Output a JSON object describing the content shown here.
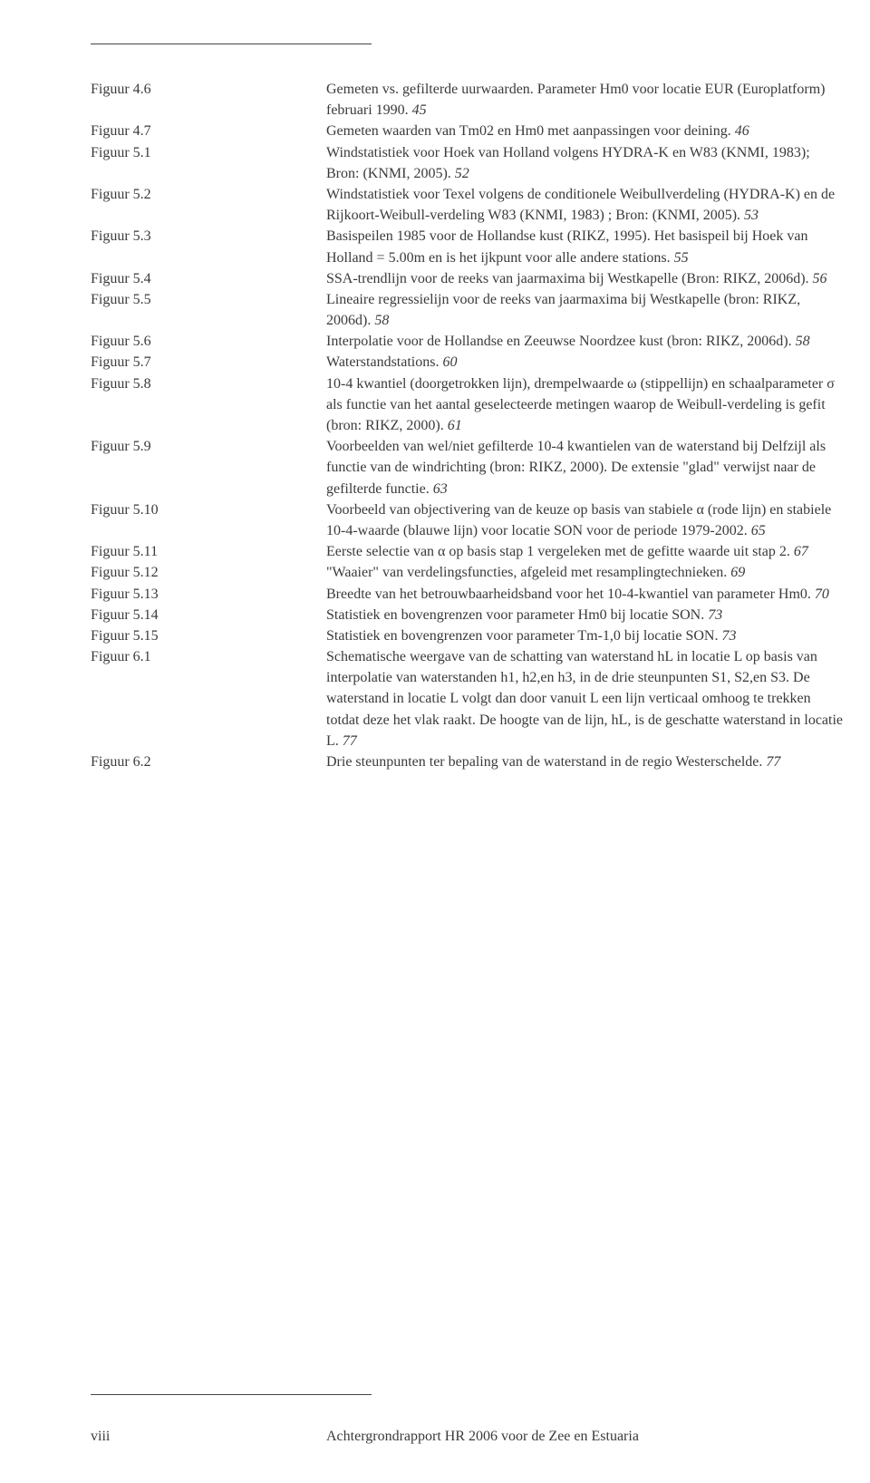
{
  "entries": [
    {
      "label": "Figuur 4.6",
      "desc": "Gemeten vs. gefilterde uurwaarden. Parameter Hm0 voor locatie EUR (Europlatform) februari 1990.",
      "page": "45"
    },
    {
      "label": "Figuur 4.7",
      "desc": "Gemeten waarden van Tm02 en Hm0 met aanpassingen voor deining.",
      "page": "46"
    },
    {
      "label": "Figuur 5.1",
      "desc": "Windstatistiek voor Hoek van Holland volgens HYDRA-K en W83 (KNMI, 1983); Bron: (KNMI, 2005).",
      "page": "52"
    },
    {
      "label": "Figuur 5.2",
      "desc": "Windstatistiek voor Texel volgens de conditionele Weibullverdeling (HYDRA-K) en de Rijkoort-Weibull-verdeling W83 (KNMI, 1983) ; Bron: (KNMI, 2005).",
      "page": "53"
    },
    {
      "label": "Figuur 5.3",
      "desc": "Basispeilen 1985 voor de Hollandse kust (RIKZ, 1995). Het basispeil bij Hoek van Holland = 5.00m en is het ijkpunt voor alle andere stations.",
      "page": "55"
    },
    {
      "label": "Figuur 5.4",
      "desc": "SSA-trendlijn voor de reeks van jaarmaxima bij Westkapelle (Bron: RIKZ, 2006d).",
      "page": "56"
    },
    {
      "label": "Figuur 5.5",
      "desc": "Lineaire regressielijn voor de reeks van jaarmaxima bij Westkapelle (bron: RIKZ, 2006d).",
      "page": "58"
    },
    {
      "label": "Figuur 5.6",
      "desc": "Interpolatie voor de Hollandse en Zeeuwse Noordzee kust (bron: RIKZ, 2006d).",
      "page": "58"
    },
    {
      "label": "Figuur 5.7",
      "desc": "Waterstandstations.",
      "page": "60"
    },
    {
      "label": "Figuur 5.8",
      "desc": "10-4 kwantiel (doorgetrokken lijn), drempelwaarde ω (stippellijn) en schaalparameter σ als functie van het aantal geselecteerde metingen waarop de Weibull-verdeling is gefit (bron: RIKZ, 2000).",
      "page": "61"
    },
    {
      "label": "Figuur 5.9",
      "desc": "Voorbeelden van wel/niet gefilterde 10-4 kwantielen van de waterstand bij Delfzijl als functie van de windrichting (bron: RIKZ, 2000). De extensie \"glad\" verwijst naar de gefilterde functie.",
      "page": "63"
    },
    {
      "label": "Figuur 5.10",
      "desc": "Voorbeeld van objectivering van de keuze op basis van stabiele α (rode lijn) en stabiele 10-4-waarde (blauwe lijn) voor locatie SON voor de periode 1979-2002.",
      "page": "65"
    },
    {
      "label": "Figuur 5.11",
      "desc": "Eerste selectie van α op basis stap 1 vergeleken met de gefitte waarde uit stap 2.",
      "page": "67"
    },
    {
      "label": "Figuur 5.12",
      "desc": "\"Waaier\" van verdelingsfuncties, afgeleid met resamplingtechnieken.",
      "page": "69"
    },
    {
      "label": "Figuur 5.13",
      "desc": "Breedte van het betrouwbaarheidsband voor het 10-4-kwantiel van parameter Hm0.",
      "page": "70"
    },
    {
      "label": "Figuur 5.14",
      "desc": "Statistiek en bovengrenzen voor parameter Hm0 bij locatie SON.",
      "page": "73"
    },
    {
      "label": "Figuur 5.15",
      "desc": "Statistiek en bovengrenzen voor parameter Tm-1,0 bij locatie SON.",
      "page": "73"
    },
    {
      "label": "Figuur 6.1",
      "desc": "Schematische weergave van de schatting van waterstand hL in locatie L op basis van interpolatie van waterstanden h1, h2,en h3, in de drie steunpunten S1, S2,en S3. De waterstand in locatie L volgt dan door vanuit L een lijn verticaal omhoog te trekken totdat deze het vlak raakt. De hoogte van de lijn, hL, is de geschatte waterstand in locatie L.",
      "page": "77"
    },
    {
      "label": "Figuur 6.2",
      "desc": "Drie steunpunten ter bepaling van de waterstand in de regio Westerschelde.",
      "page": "77"
    }
  ],
  "footer": {
    "page_roman": "viii",
    "title": "Achtergrondrapport HR 2006 voor de Zee en Estuaria"
  }
}
